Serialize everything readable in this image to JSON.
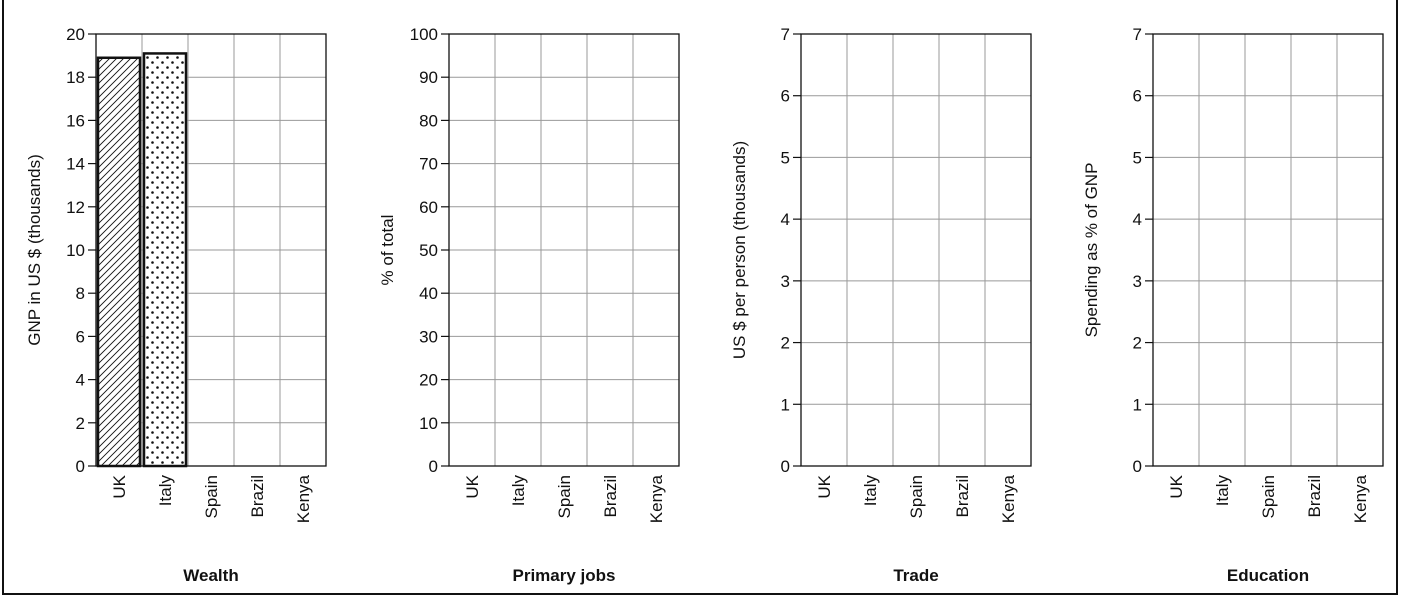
{
  "colors": {
    "axis": "#111111",
    "grid": "#999999",
    "bar_outline": "#111111",
    "background": "#ffffff"
  },
  "chart_data": [
    {
      "type": "bar",
      "title": "Wealth",
      "ylabel": "GNP in US $ (thousands)",
      "categories": [
        "UK",
        "Italy",
        "Spain",
        "Brazil",
        "Kenya"
      ],
      "values": [
        18.9,
        19.1,
        null,
        null,
        null
      ],
      "fills": [
        "hatched",
        "dotted",
        "none",
        "none",
        "none"
      ],
      "ylim": [
        0,
        20
      ],
      "yticks": [
        "0",
        "2",
        "4",
        "6",
        "8",
        "10",
        "12",
        "14",
        "16",
        "18",
        "20"
      ],
      "grid": true
    },
    {
      "type": "bar",
      "title": "Primary jobs",
      "ylabel": "% of total",
      "categories": [
        "UK",
        "Italy",
        "Spain",
        "Brazil",
        "Kenya"
      ],
      "values": [
        null,
        null,
        null,
        null,
        null
      ],
      "ylim": [
        0,
        100
      ],
      "yticks": [
        "0",
        "10",
        "20",
        "30",
        "40",
        "50",
        "60",
        "70",
        "80",
        "90",
        "100"
      ],
      "grid": true
    },
    {
      "type": "bar",
      "title": "Trade",
      "ylabel": "US $ per person (thousands)",
      "categories": [
        "UK",
        "Italy",
        "Spain",
        "Brazil",
        "Kenya"
      ],
      "values": [
        null,
        null,
        null,
        null,
        null
      ],
      "ylim": [
        0,
        7
      ],
      "yticks": [
        "0",
        "1",
        "2",
        "3",
        "4",
        "5",
        "6",
        "7"
      ],
      "grid": true
    },
    {
      "type": "bar",
      "title": "Education",
      "ylabel": "Spending as % of GNP",
      "categories": [
        "UK",
        "Italy",
        "Spain",
        "Brazil",
        "Kenya"
      ],
      "values": [
        null,
        null,
        null,
        null,
        null
      ],
      "ylim": [
        0,
        7
      ],
      "yticks": [
        "0",
        "1",
        "2",
        "3",
        "4",
        "5",
        "6",
        "7"
      ],
      "grid": true
    }
  ]
}
